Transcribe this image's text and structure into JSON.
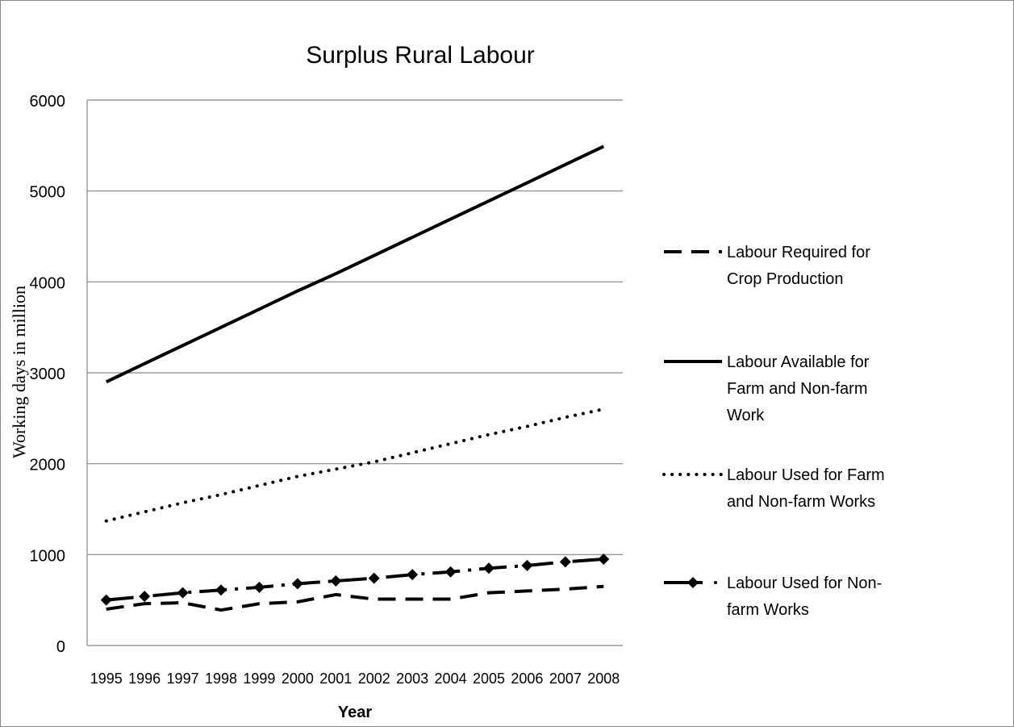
{
  "chart_data": {
    "type": "line",
    "title": "Surplus Rural Labour",
    "xlabel": "Year",
    "ylabel": "Working days in million",
    "categories": [
      "1995",
      "1996",
      "1997",
      "1998",
      "1999",
      "2000",
      "2001",
      "2002",
      "2003",
      "2004",
      "2005",
      "2006",
      "2007",
      "2008"
    ],
    "ylim": [
      0,
      6000
    ],
    "yticks": [
      0,
      1000,
      2000,
      3000,
      4000,
      5000,
      6000
    ],
    "grid": true,
    "legend_position": "right",
    "series": [
      {
        "name": "Labour Required for Crop Production",
        "legend_lines": [
          "Labour Required for",
          "Crop Production"
        ],
        "style": "dashed",
        "color": "#000000",
        "values": [
          400,
          460,
          470,
          390,
          460,
          480,
          560,
          510,
          510,
          510,
          580,
          600,
          620,
          650
        ]
      },
      {
        "name": "Labour Available for Farm and Non-farm Work",
        "legend_lines": [
          "Labour Available for",
          "Farm and Non-farm",
          "Work"
        ],
        "style": "solid",
        "color": "#000000",
        "values": [
          2900,
          3100,
          3300,
          3500,
          3700,
          3900,
          4090,
          4290,
          4490,
          4690,
          4890,
          5090,
          5290,
          5490
        ]
      },
      {
        "name": "Labour Used for Farm and Non-farm Works",
        "legend_lines": [
          "Labour Used for Farm",
          "and Non-farm Works"
        ],
        "style": "dotted",
        "color": "#000000",
        "values": [
          1370,
          1470,
          1570,
          1660,
          1760,
          1860,
          1940,
          2020,
          2120,
          2220,
          2320,
          2410,
          2510,
          2600
        ]
      },
      {
        "name": "Labour Used for Non-farm Works",
        "legend_lines": [
          "Labour Used for Non-",
          "farm Works"
        ],
        "style": "dashdot-diamond",
        "color": "#000000",
        "values": [
          500,
          540,
          580,
          610,
          640,
          680,
          710,
          740,
          780,
          810,
          850,
          880,
          920,
          950
        ]
      }
    ]
  }
}
